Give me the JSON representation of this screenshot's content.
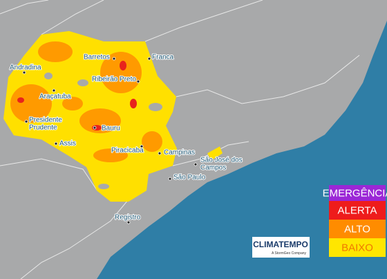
{
  "cities": [
    {
      "lines": [
        "Andradina"
      ]
    },
    {
      "lines": [
        "Barretos"
      ]
    },
    {
      "lines": [
        "Franca"
      ]
    },
    {
      "lines": [
        "Ribeirão Preto"
      ]
    },
    {
      "lines": [
        "Araçatuba"
      ]
    },
    {
      "lines": [
        "Presidente",
        "Prudente"
      ]
    },
    {
      "lines": [
        "Bauru"
      ]
    },
    {
      "lines": [
        "Assis"
      ]
    },
    {
      "lines": [
        "Piracicaba"
      ]
    },
    {
      "lines": [
        "Campinas"
      ]
    },
    {
      "lines": [
        "São José dos",
        "Campos"
      ]
    },
    {
      "lines": [
        "São Paulo"
      ]
    },
    {
      "lines": [
        "Registro"
      ]
    }
  ],
  "legend": [
    {
      "label": "EMERGÊNCIA",
      "color": "#9b27d6",
      "text_color": "#ffffff"
    },
    {
      "label": "ALERTA",
      "color": "#ee1c1c",
      "text_color": "#ffffff"
    },
    {
      "label": "ALTO",
      "color": "#ff8c00",
      "text_color": "#ffffff"
    },
    {
      "label": "BAIXO",
      "color": "#ffe600",
      "text_color": "#f07800"
    }
  ],
  "logo": {
    "title": "CLIMATEMPO",
    "subtitle": "A StormGeo Company"
  }
}
